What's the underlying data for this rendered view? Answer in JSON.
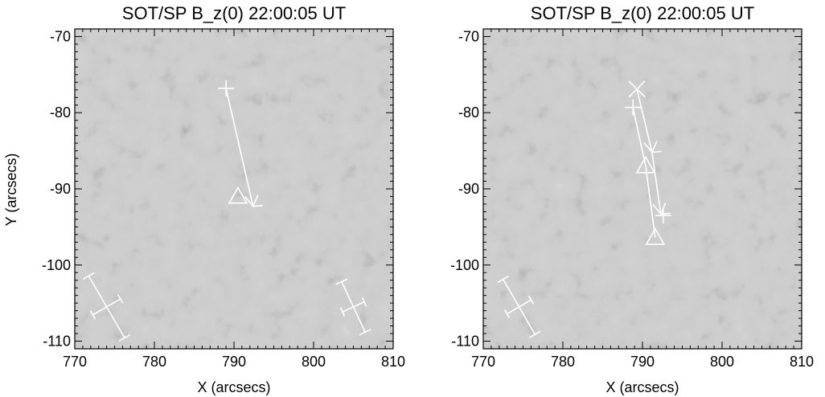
{
  "chart_data": [
    {
      "type": "scatter",
      "title": "SOT/SP B_z(0) 22:00:05 UT",
      "xlabel": "X (arcsecs)",
      "ylabel": "Y (arcsecs)",
      "xlim": [
        770,
        810
      ],
      "ylim": [
        -111,
        -69
      ],
      "xticks": [
        770,
        780,
        790,
        800,
        810
      ],
      "yticks": [
        -110,
        -100,
        -90,
        -80,
        -70
      ],
      "grid": false,
      "background": "grayscale magnetogram",
      "plus_markers": [
        {
          "x": 789.0,
          "y": -76.8
        }
      ],
      "track": [
        {
          "x": 789.0,
          "y": -76.8
        },
        {
          "x": 792.4,
          "y": -92.3
        }
      ],
      "arrow_markers": [
        {
          "x": 792.4,
          "y": -92.3
        }
      ],
      "triangle_markers": [
        {
          "x": 790.5,
          "y": -91.0
        }
      ],
      "error_crosses": [
        {
          "x": 774.0,
          "y": -105.5,
          "length": 9.0,
          "angle_deg": -60,
          "cross_width": 4.0
        },
        {
          "x": 805.0,
          "y": -105.5,
          "length": 7.0,
          "angle_deg": -65,
          "cross_width": 3.0
        }
      ]
    },
    {
      "type": "scatter",
      "title": "SOT/SP B_z(0) 22:00:05 UT",
      "xlabel": "X (arcsecs)",
      "ylabel": "",
      "xlim": [
        770,
        810
      ],
      "ylim": [
        -111,
        -69
      ],
      "xticks": [
        770,
        780,
        790,
        800,
        810
      ],
      "yticks": [
        -110,
        -100,
        -90,
        -80,
        -70
      ],
      "grid": false,
      "background": "grayscale magnetogram",
      "plus_markers": [
        {
          "x": 788.8,
          "y": -79.3
        },
        {
          "x": 792.6,
          "y": -93.5
        }
      ],
      "x_markers": [
        {
          "x": 789.3,
          "y": -76.9
        }
      ],
      "tracks": [
        [
          {
            "x": 789.3,
            "y": -76.9
          },
          {
            "x": 791.2,
            "y": -85.2
          },
          {
            "x": 792.3,
            "y": -93.3
          }
        ],
        [
          {
            "x": 788.8,
            "y": -79.3
          },
          {
            "x": 790.4,
            "y": -87.0
          },
          {
            "x": 791.6,
            "y": -96.4
          }
        ]
      ],
      "arrow_markers": [
        {
          "x": 791.2,
          "y": -85.2
        },
        {
          "x": 792.3,
          "y": -93.3
        }
      ],
      "triangle_markers": [
        {
          "x": 790.4,
          "y": -87.0
        },
        {
          "x": 791.6,
          "y": -96.4
        }
      ],
      "error_crosses": [
        {
          "x": 774.5,
          "y": -105.5,
          "length": 8.0,
          "angle_deg": -60,
          "cross_width": 3.5
        }
      ]
    }
  ],
  "colors": {
    "marker": "#ffffff",
    "axes": "#000000",
    "background_gray": "#989898"
  }
}
